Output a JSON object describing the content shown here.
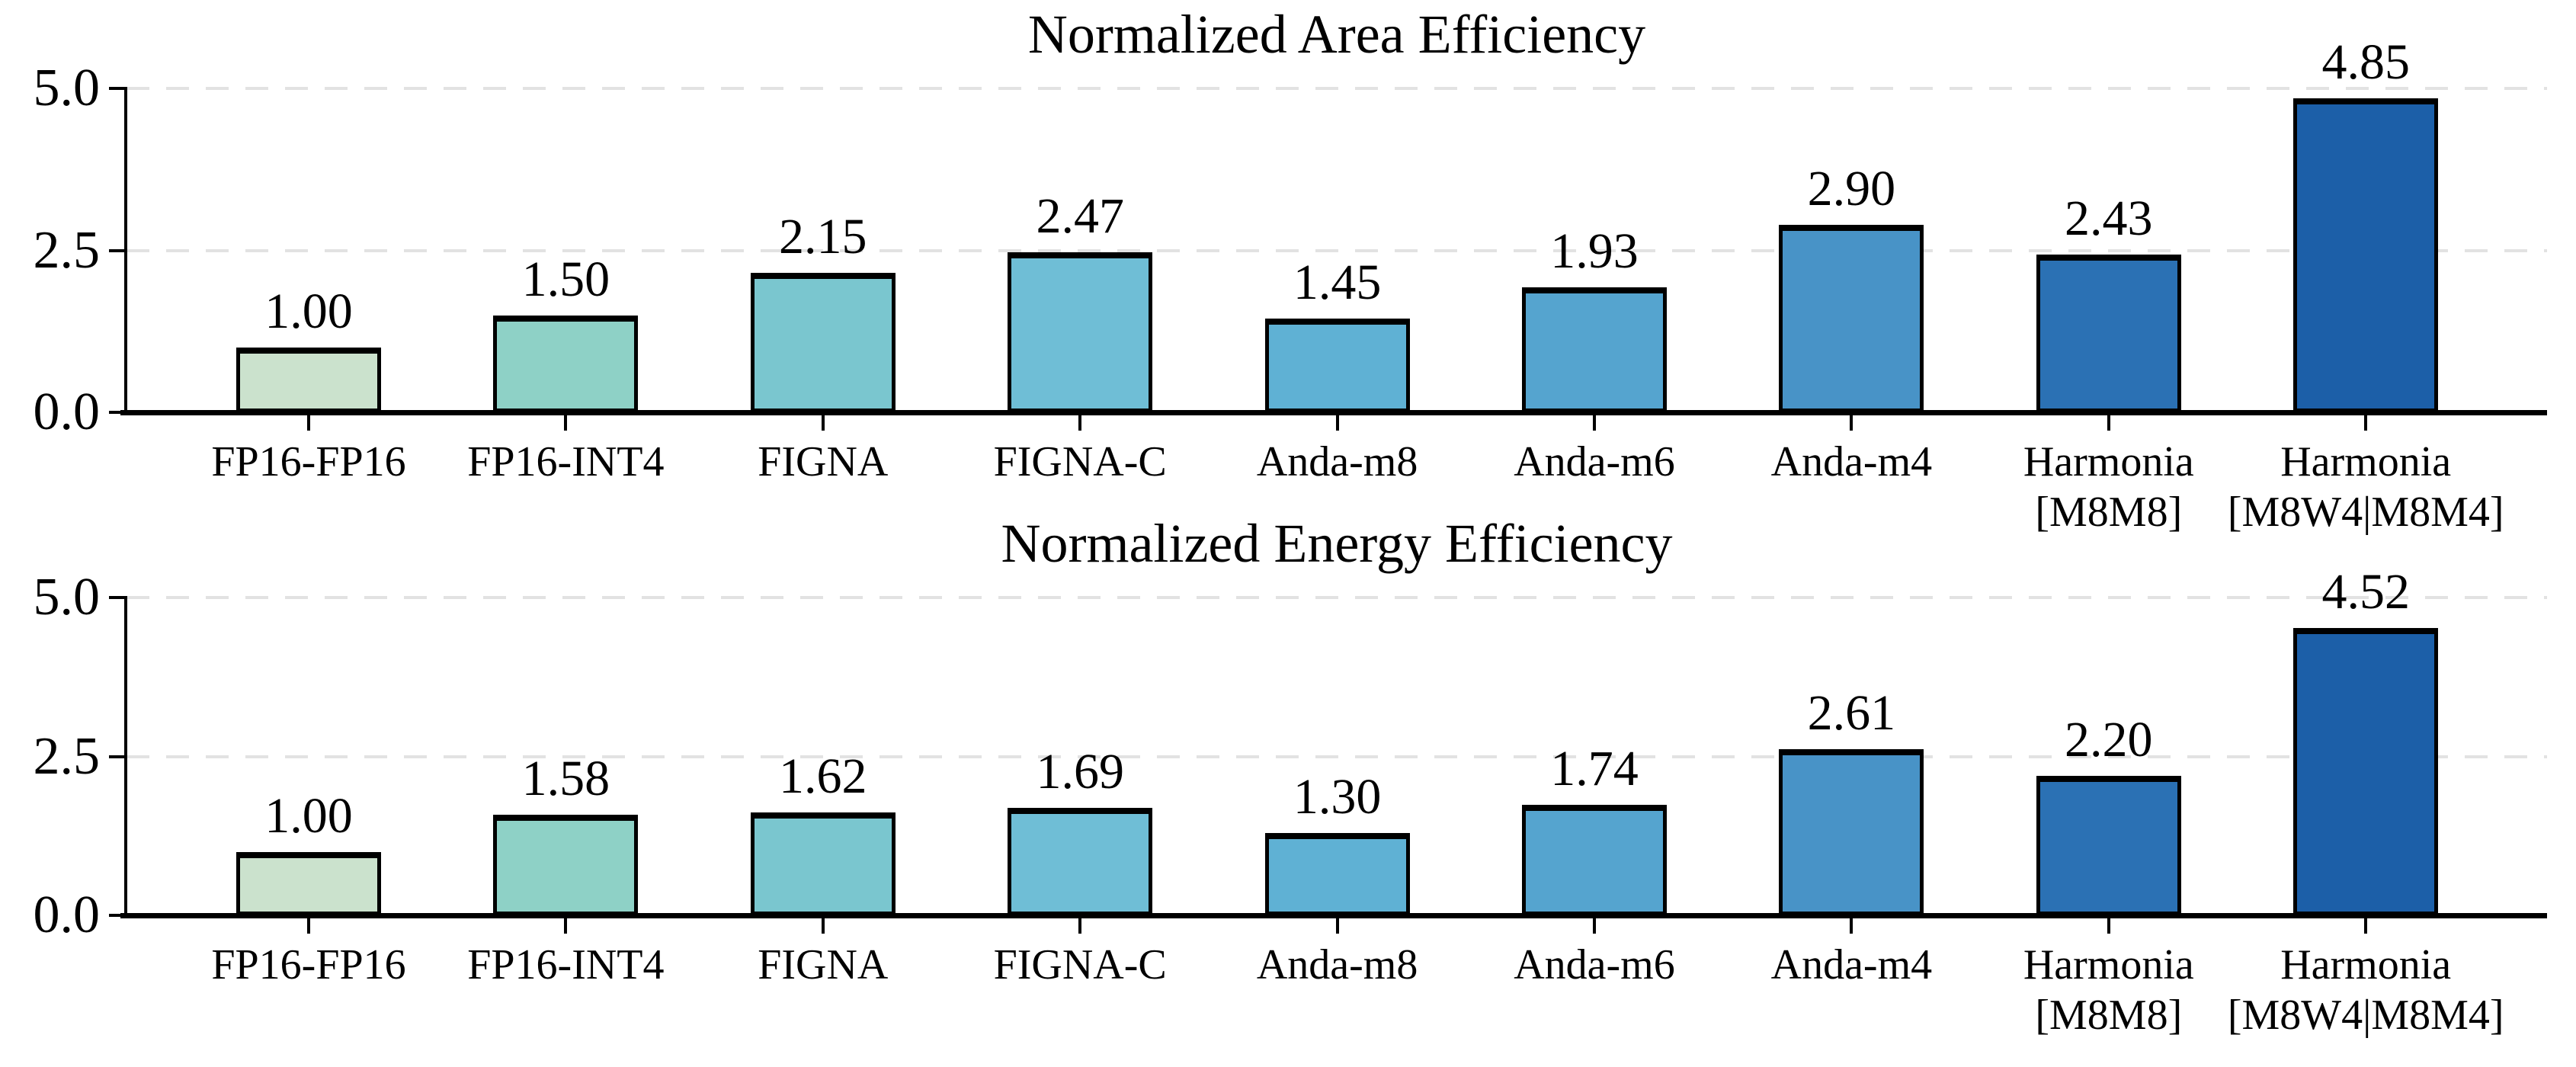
{
  "figure": {
    "background": "#ffffff",
    "text_color": "#000000",
    "grid_color": "#e2e2e2",
    "bar_edge_color": "#000000",
    "bar_colors": [
      "#cbe2cd",
      "#8ed1c6",
      "#7ac6cf",
      "#6fbed6",
      "#5fb1d4",
      "#55a4cf",
      "#4893c7",
      "#2b71b4",
      "#1c5fa8"
    ]
  },
  "chart_data": [
    {
      "type": "bar",
      "title": "Normalized Area Efficiency",
      "categories": [
        "FP16-FP16",
        "FP16-INT4",
        "FIGNA",
        "FIGNA-C",
        "Anda-m8",
        "Anda-m6",
        "Anda-m4",
        "Harmonia\n[M8M8]",
        "Harmonia\n[M8W4|M8M4]"
      ],
      "values": [
        1.0,
        1.5,
        2.15,
        2.47,
        1.45,
        1.93,
        2.9,
        2.43,
        4.85
      ],
      "value_labels": [
        "1.00",
        "1.50",
        "2.15",
        "2.47",
        "1.45",
        "1.93",
        "2.90",
        "2.43",
        "4.85"
      ],
      "xlabel": "",
      "ylabel": "",
      "ylim": [
        0,
        5
      ],
      "yticks": [
        0,
        2.5,
        5
      ],
      "ytick_labels": [
        "0.0",
        "2.5",
        "5.0"
      ],
      "gridlines": [
        2.5,
        5
      ],
      "grid_style": "dashed",
      "legend_position": "none"
    },
    {
      "type": "bar",
      "title": "Normalized Energy Efficiency",
      "categories": [
        "FP16-FP16",
        "FP16-INT4",
        "FIGNA",
        "FIGNA-C",
        "Anda-m8",
        "Anda-m6",
        "Anda-m4",
        "Harmonia\n[M8M8]",
        "Harmonia\n[M8W4|M8M4]"
      ],
      "values": [
        1.0,
        1.58,
        1.62,
        1.69,
        1.3,
        1.74,
        2.61,
        2.2,
        4.52
      ],
      "value_labels": [
        "1.00",
        "1.58",
        "1.62",
        "1.69",
        "1.30",
        "1.74",
        "2.61",
        "2.20",
        "4.52"
      ],
      "xlabel": "",
      "ylabel": "",
      "ylim": [
        0,
        5
      ],
      "yticks": [
        0,
        2.5,
        5
      ],
      "ytick_labels": [
        "0.0",
        "2.5",
        "5.0"
      ],
      "gridlines": [
        2.5,
        5
      ],
      "grid_style": "dashed",
      "legend_position": "none"
    }
  ]
}
